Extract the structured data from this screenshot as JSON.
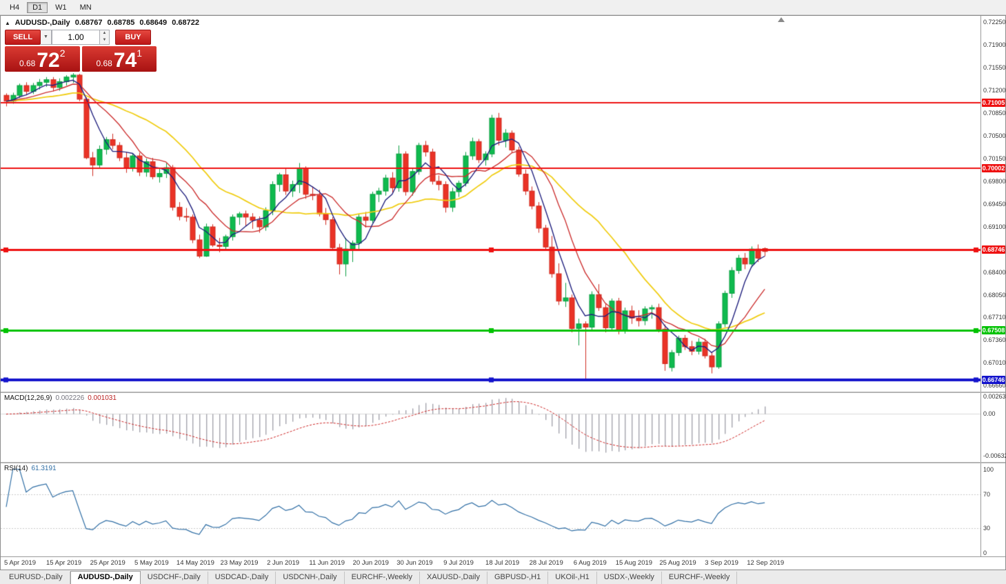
{
  "toolbar": {
    "timeframes": [
      {
        "label": "H4",
        "active": false
      },
      {
        "label": "D1",
        "active": true
      },
      {
        "label": "W1",
        "active": false
      },
      {
        "label": "MN",
        "active": false
      }
    ]
  },
  "title": {
    "collapse_icon": "▲",
    "symbol": "AUDUSD-,Daily",
    "open": "0.68767",
    "high": "0.68785",
    "low": "0.68649",
    "close": "0.68722"
  },
  "trade_panel": {
    "sell_label": "SELL",
    "buy_label": "BUY",
    "volume": "1.00",
    "dropdown_icon": "▼",
    "spin_up_icon": "▲",
    "spin_down_icon": "▼",
    "sell_price_small": "0.68",
    "sell_price_big": "72",
    "sell_price_sup": "2",
    "buy_price_small": "0.68",
    "buy_price_big": "74",
    "buy_price_sup": "1"
  },
  "main_chart": {
    "price_top": 0.7234,
    "price_bottom": 0.6657,
    "y_ticks": [
      "0.72250",
      "0.71900",
      "0.71550",
      "0.71200",
      "0.70850",
      "0.70500",
      "0.70150",
      "0.69800",
      "0.69450",
      "0.69100",
      "0.68750",
      "0.68400",
      "0.68050",
      "0.67710",
      "0.67360",
      "0.67010",
      "0.66660"
    ],
    "hlines": [
      {
        "price": 0.71005,
        "label": "0.71005",
        "color": "#ee1111",
        "width": 2,
        "handles": false
      },
      {
        "price": 0.70002,
        "label": "0.70002",
        "color": "#ee1111",
        "width": 2,
        "handles": false
      },
      {
        "price": 0.68746,
        "label": "0.68746",
        "color": "#ee1111",
        "width": 3,
        "handles": true
      },
      {
        "price": 0.67508,
        "label": "0.67508",
        "color": "#00c200",
        "width": 3,
        "handles": true
      },
      {
        "price": 0.66746,
        "label": "0.66746",
        "color": "#1414cc",
        "width": 4,
        "handles": true
      }
    ]
  },
  "chart_data": {
    "type": "candlestick",
    "symbol": "AUDUSD",
    "timeframe": "Daily",
    "up_color": "#0fba4e",
    "up_wick": "#0a9e41",
    "down_color": "#ea3326",
    "down_wick": "#cf2a1f",
    "x_labels": [
      "5 Apr 2019",
      "15 Apr 2019",
      "25 Apr 2019",
      "5 May 2019",
      "14 May 2019",
      "23 May 2019",
      "2 Jun 2019",
      "11 Jun 2019",
      "20 Jun 2019",
      "30 Jun 2019",
      "9 Jul 2019",
      "18 Jul 2019",
      "28 Jul 2019",
      "6 Aug 2019",
      "15 Aug 2019",
      "25 Aug 2019",
      "3 Sep 2019",
      "12 Sep 2019"
    ],
    "ma": [
      {
        "type": "sma",
        "period": 21,
        "color": "#f0cd14",
        "width": 1.8
      },
      {
        "type": "sma",
        "period": 10,
        "color": "#cc3030",
        "width": 1.4
      },
      {
        "type": "sma",
        "period": 5,
        "color": "#20207e",
        "width": 1.4
      }
    ],
    "candles": [
      [
        0.7112,
        0.7115,
        0.7095,
        0.7103
      ],
      [
        0.7103,
        0.7116,
        0.7099,
        0.7112
      ],
      [
        0.7112,
        0.713,
        0.7108,
        0.7127
      ],
      [
        0.7127,
        0.7132,
        0.7112,
        0.7118
      ],
      [
        0.7118,
        0.7131,
        0.7114,
        0.7127
      ],
      [
        0.7127,
        0.7137,
        0.7121,
        0.7132
      ],
      [
        0.7132,
        0.714,
        0.7125,
        0.7136
      ],
      [
        0.7136,
        0.714,
        0.7118,
        0.7124
      ],
      [
        0.7124,
        0.7138,
        0.7119,
        0.7133
      ],
      [
        0.7133,
        0.7143,
        0.7127,
        0.714
      ],
      [
        0.714,
        0.7146,
        0.7131,
        0.7143
      ],
      [
        0.7143,
        0.7145,
        0.7103,
        0.7106
      ],
      [
        0.7106,
        0.7109,
        0.7014,
        0.7016
      ],
      [
        0.7016,
        0.7025,
        0.6988,
        0.7005
      ],
      [
        0.7005,
        0.7035,
        0.7,
        0.7029
      ],
      [
        0.7029,
        0.7048,
        0.7021,
        0.7044
      ],
      [
        0.7044,
        0.7053,
        0.7029,
        0.7035
      ],
      [
        0.7035,
        0.704,
        0.7011,
        0.7016
      ],
      [
        0.7016,
        0.7025,
        0.6993,
        0.7
      ],
      [
        0.7,
        0.7023,
        0.6995,
        0.7019
      ],
      [
        0.7019,
        0.7024,
        0.6988,
        0.6994
      ],
      [
        0.6994,
        0.7015,
        0.6987,
        0.701
      ],
      [
        0.701,
        0.7016,
        0.6983,
        0.6987
      ],
      [
        0.6987,
        0.7,
        0.6978,
        0.6992
      ],
      [
        0.6992,
        0.7008,
        0.6985,
        0.7001
      ],
      [
        0.7001,
        0.7005,
        0.6935,
        0.694
      ],
      [
        0.694,
        0.6948,
        0.692,
        0.6926
      ],
      [
        0.6926,
        0.6939,
        0.6918,
        0.6925
      ],
      [
        0.6925,
        0.6929,
        0.6885,
        0.689
      ],
      [
        0.689,
        0.6898,
        0.6862,
        0.6865
      ],
      [
        0.6865,
        0.6915,
        0.6864,
        0.691
      ],
      [
        0.691,
        0.6914,
        0.6879,
        0.6882
      ],
      [
        0.6882,
        0.6893,
        0.6871,
        0.688
      ],
      [
        0.688,
        0.6898,
        0.6874,
        0.6895
      ],
      [
        0.6895,
        0.6929,
        0.6889,
        0.6925
      ],
      [
        0.6925,
        0.6933,
        0.6913,
        0.693
      ],
      [
        0.693,
        0.6935,
        0.6912,
        0.6925
      ],
      [
        0.6925,
        0.6931,
        0.6907,
        0.692
      ],
      [
        0.692,
        0.6926,
        0.6901,
        0.691
      ],
      [
        0.691,
        0.694,
        0.6904,
        0.6935
      ],
      [
        0.6935,
        0.698,
        0.6928,
        0.6975
      ],
      [
        0.6975,
        0.6993,
        0.6964,
        0.699
      ],
      [
        0.699,
        0.6999,
        0.6959,
        0.6965
      ],
      [
        0.6965,
        0.6981,
        0.6956,
        0.6975
      ],
      [
        0.6975,
        0.7008,
        0.6962,
        0.7
      ],
      [
        0.7,
        0.7003,
        0.6953,
        0.696
      ],
      [
        0.696,
        0.6972,
        0.6951,
        0.6958
      ],
      [
        0.6958,
        0.6967,
        0.6926,
        0.693
      ],
      [
        0.693,
        0.6939,
        0.6913,
        0.6921
      ],
      [
        0.6921,
        0.6925,
        0.6874,
        0.6878
      ],
      [
        0.6878,
        0.6884,
        0.6837,
        0.6853
      ],
      [
        0.6853,
        0.6893,
        0.6834,
        0.6876
      ],
      [
        0.6876,
        0.6889,
        0.6856,
        0.6885
      ],
      [
        0.6885,
        0.693,
        0.6875,
        0.6925
      ],
      [
        0.6925,
        0.6933,
        0.6909,
        0.692
      ],
      [
        0.692,
        0.6964,
        0.6916,
        0.696
      ],
      [
        0.696,
        0.697,
        0.6948,
        0.6965
      ],
      [
        0.6965,
        0.699,
        0.6958,
        0.6985
      ],
      [
        0.6985,
        0.6994,
        0.6962,
        0.697
      ],
      [
        0.697,
        0.7035,
        0.6964,
        0.7022
      ],
      [
        0.7022,
        0.7026,
        0.6958,
        0.6964
      ],
      [
        0.6964,
        0.7,
        0.6958,
        0.6995
      ],
      [
        0.6995,
        0.7039,
        0.699,
        0.7035
      ],
      [
        0.7035,
        0.7042,
        0.7018,
        0.7025
      ],
      [
        0.7025,
        0.703,
        0.6975,
        0.698
      ],
      [
        0.698,
        0.6989,
        0.6966,
        0.6975
      ],
      [
        0.6975,
        0.698,
        0.6932,
        0.694
      ],
      [
        0.694,
        0.697,
        0.6933,
        0.6964
      ],
      [
        0.6964,
        0.6981,
        0.6956,
        0.6977
      ],
      [
        0.6977,
        0.7025,
        0.6972,
        0.7019
      ],
      [
        0.7019,
        0.7047,
        0.7013,
        0.7041
      ],
      [
        0.7041,
        0.7045,
        0.7008,
        0.7013
      ],
      [
        0.7013,
        0.7026,
        0.7004,
        0.7022
      ],
      [
        0.7022,
        0.7082,
        0.7017,
        0.7077
      ],
      [
        0.7077,
        0.7085,
        0.7035,
        0.7043
      ],
      [
        0.7043,
        0.706,
        0.7032,
        0.7054
      ],
      [
        0.7054,
        0.7058,
        0.7023,
        0.7028
      ],
      [
        0.7028,
        0.7033,
        0.6987,
        0.6991
      ],
      [
        0.6991,
        0.6998,
        0.6959,
        0.6965
      ],
      [
        0.6965,
        0.6972,
        0.6937,
        0.6942
      ],
      [
        0.6942,
        0.6948,
        0.6901,
        0.6908
      ],
      [
        0.6908,
        0.6913,
        0.6874,
        0.6879
      ],
      [
        0.6879,
        0.6896,
        0.6832,
        0.6838
      ],
      [
        0.6838,
        0.6854,
        0.679,
        0.6796
      ],
      [
        0.6796,
        0.6824,
        0.6787,
        0.6801
      ],
      [
        0.6801,
        0.6806,
        0.6748,
        0.6754
      ],
      [
        0.6754,
        0.6769,
        0.6728,
        0.6761
      ],
      [
        0.6761,
        0.6765,
        0.6677,
        0.6756
      ],
      [
        0.6756,
        0.6811,
        0.6752,
        0.6806
      ],
      [
        0.6806,
        0.6822,
        0.6781,
        0.6786
      ],
      [
        0.6786,
        0.6792,
        0.6748,
        0.6755
      ],
      [
        0.6755,
        0.68,
        0.675,
        0.6796
      ],
      [
        0.6796,
        0.6801,
        0.6745,
        0.6751
      ],
      [
        0.6751,
        0.6786,
        0.6746,
        0.6781
      ],
      [
        0.6781,
        0.6789,
        0.6761,
        0.677
      ],
      [
        0.677,
        0.6782,
        0.6757,
        0.6766
      ],
      [
        0.6766,
        0.6788,
        0.6759,
        0.6784
      ],
      [
        0.6784,
        0.679,
        0.6769,
        0.6786
      ],
      [
        0.6786,
        0.6792,
        0.6748,
        0.6753
      ],
      [
        0.6753,
        0.676,
        0.6689,
        0.67
      ],
      [
        0.6694,
        0.6721,
        0.6688,
        0.6717
      ],
      [
        0.6717,
        0.6743,
        0.6712,
        0.6739
      ],
      [
        0.6739,
        0.6744,
        0.6721,
        0.6726
      ],
      [
        0.6726,
        0.6735,
        0.6713,
        0.6719
      ],
      [
        0.6719,
        0.6739,
        0.6714,
        0.6733
      ],
      [
        0.6733,
        0.6738,
        0.6708,
        0.6712
      ],
      [
        0.6712,
        0.6717,
        0.6685,
        0.6695
      ],
      [
        0.6695,
        0.6765,
        0.6692,
        0.6761
      ],
      [
        0.6761,
        0.6812,
        0.6756,
        0.6808
      ],
      [
        0.6808,
        0.6848,
        0.6801,
        0.6843
      ],
      [
        0.6843,
        0.6867,
        0.6838,
        0.6862
      ],
      [
        0.6862,
        0.687,
        0.6845,
        0.6853
      ],
      [
        0.6853,
        0.688,
        0.6848,
        0.6876
      ],
      [
        0.6876,
        0.6883,
        0.6856,
        0.6862
      ],
      [
        0.68767,
        0.68785,
        0.68649,
        0.68722
      ]
    ]
  },
  "macd_panel": {
    "name": "MACD(12,26,9)",
    "value_main": "0.002226",
    "value_signal": "0.001031",
    "params": {
      "fast": 12,
      "slow": 26,
      "signal": 9
    },
    "scale_top": 0.0032,
    "scale_bottom": -0.0073,
    "ticks": [
      {
        "v": 0.00263,
        "label": "0.00263"
      },
      {
        "v": 0,
        "label": "0.00"
      },
      {
        "v": -0.00632,
        "label": "-0.00632"
      }
    ],
    "hist_color": "#a3a3ac",
    "signal_color": "#cc2222",
    "zero_color": "#d8d8d8"
  },
  "rsi_panel": {
    "name": "RSI(14)",
    "value": "61.3191",
    "period": 14,
    "scale_top": 107,
    "scale_bottom": -4,
    "ticks": [
      {
        "v": 100,
        "label": "100"
      },
      {
        "v": 70,
        "label": "70"
      },
      {
        "v": 30,
        "label": "30"
      },
      {
        "v": 0,
        "label": "0"
      }
    ],
    "levels": [
      70,
      30
    ],
    "line_color": "#2e6da4",
    "level_color": "#c8c8c8"
  },
  "tabs": {
    "active_index": 1,
    "items": [
      "EURUSD-,Daily",
      "AUDUSD-,Daily",
      "USDCHF-,Daily",
      "USDCAD-,Daily",
      "USDCNH-,Daily",
      "EURCHF-,Weekly",
      "XAUUSD-,Daily",
      "GBPUSD-,H1",
      "UKOil-,H1",
      "USDX-,Weekly",
      "EURCHF-,Weekly"
    ]
  }
}
